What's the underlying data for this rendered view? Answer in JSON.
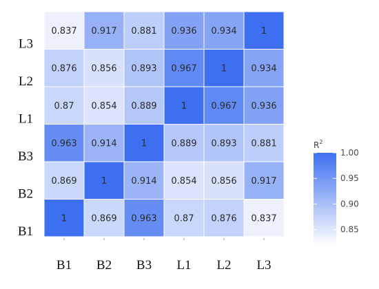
{
  "chart_data": {
    "type": "heatmap",
    "x_labels": [
      "B1",
      "B2",
      "B3",
      "L1",
      "L2",
      "L3"
    ],
    "y_labels": [
      "L3",
      "L2",
      "L1",
      "B3",
      "B2",
      "B1"
    ],
    "values": [
      [
        0.837,
        0.917,
        0.881,
        0.936,
        0.934,
        1
      ],
      [
        0.876,
        0.856,
        0.893,
        0.967,
        1,
        0.934
      ],
      [
        0.87,
        0.854,
        0.889,
        1,
        0.967,
        0.936
      ],
      [
        0.963,
        0.914,
        1,
        0.889,
        0.893,
        0.881
      ],
      [
        0.869,
        1,
        0.914,
        0.854,
        0.856,
        0.917
      ],
      [
        1,
        0.869,
        0.963,
        0.87,
        0.876,
        0.837
      ]
    ],
    "value_labels": [
      [
        "0.837",
        "0.917",
        "0.881",
        "0.936",
        "0.934",
        "1"
      ],
      [
        "0.876",
        "0.856",
        "0.893",
        "0.967",
        "1",
        "0.934"
      ],
      [
        "0.87",
        "0.854",
        "0.889",
        "1",
        "0.967",
        "0.936"
      ],
      [
        "0.963",
        "0.914",
        "1",
        "0.889",
        "0.893",
        "0.881"
      ],
      [
        "0.869",
        "1",
        "0.914",
        "0.854",
        "0.856",
        "0.917"
      ],
      [
        "1",
        "0.869",
        "0.963",
        "0.87",
        "0.876",
        "0.837"
      ]
    ],
    "legend": {
      "title": "R",
      "title_superscript": "2",
      "range": [
        0.82,
        1.0
      ],
      "ticks": [
        1.0,
        0.95,
        0.9,
        0.85
      ],
      "tick_labels": [
        "1.00",
        "0.95",
        "0.90",
        "0.85"
      ],
      "placement": "right"
    },
    "colors": {
      "low": "#ffffff",
      "high": "#3e6ff0"
    }
  }
}
